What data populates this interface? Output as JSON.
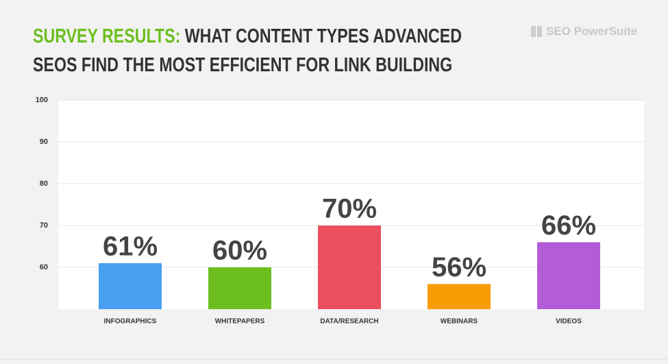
{
  "chart_data": {
    "type": "bar",
    "title_highlight": "SURVEY RESULTS:",
    "title": "WHAT CONTENT TYPES ADVANCED SEOS FIND THE MOST EFFICIENT FOR LINK BUILDING",
    "logo": "SEO PowerSuite",
    "categories": [
      "INFOGRAPHICS",
      "WHITEPAPERS",
      "DATA/RESEARCH",
      "WEBINARS",
      "VIDEOS"
    ],
    "values": [
      61,
      60,
      70,
      56,
      66
    ],
    "value_labels": [
      "61%",
      "60%",
      "70%",
      "56%",
      "66%"
    ],
    "colors": [
      "#4a9ff0",
      "#6cbf1e",
      "#ec4f5f",
      "#f99b05",
      "#b45bd8"
    ],
    "ylim": [
      50,
      100
    ],
    "yticks": [
      60,
      70,
      80,
      90,
      100
    ],
    "grid": true
  }
}
